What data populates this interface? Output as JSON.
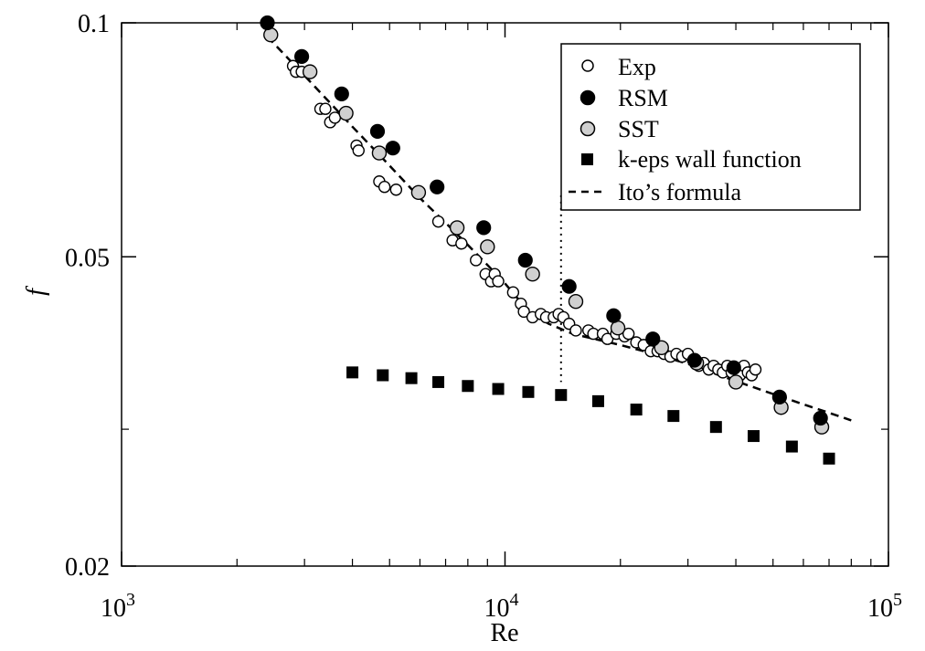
{
  "chart_data": {
    "type": "scatter",
    "title": "",
    "xlabel": "Re",
    "ylabel": "f",
    "xscale": "log",
    "yscale": "log",
    "xlim": [
      1000,
      100000
    ],
    "ylim": [
      0.02,
      0.1
    ],
    "x_ticks": [
      {
        "value": 1000,
        "base": "10",
        "exp": "3"
      },
      {
        "value": 10000,
        "base": "10",
        "exp": "4"
      },
      {
        "value": 100000,
        "base": "10",
        "exp": "5"
      }
    ],
    "y_ticks": [
      {
        "value": 0.1,
        "label": "0.1"
      },
      {
        "value": 0.05,
        "label": "0.05"
      },
      {
        "value": 0.02,
        "label": "0.02"
      }
    ],
    "y_minor_ticks": [
      0.03
    ],
    "x_minor_ticks": [
      2000,
      3000,
      4000,
      5000,
      6000,
      7000,
      8000,
      9000,
      20000,
      30000,
      40000,
      50000,
      60000,
      70000,
      80000,
      90000
    ],
    "grid": false,
    "legend_position": "top-right",
    "annotations": [
      {
        "type": "vertical-dotted-line",
        "x": 14000,
        "y_range": [
          0.0345,
          0.06
        ]
      }
    ],
    "series": [
      {
        "name": "Exp",
        "marker": "open-circle",
        "color": "#000000",
        "fill": "#ffffff",
        "points": [
          [
            2800,
            0.088
          ],
          [
            2850,
            0.0865
          ],
          [
            2950,
            0.0865
          ],
          [
            3300,
            0.0775
          ],
          [
            3400,
            0.0775
          ],
          [
            3500,
            0.0745
          ],
          [
            3600,
            0.0755
          ],
          [
            4100,
            0.0695
          ],
          [
            4150,
            0.0685
          ],
          [
            4700,
            0.0625
          ],
          [
            4850,
            0.0615
          ],
          [
            5200,
            0.061
          ],
          [
            6700,
            0.0555
          ],
          [
            7300,
            0.0525
          ],
          [
            7700,
            0.052
          ],
          [
            8400,
            0.0495
          ],
          [
            8900,
            0.0475
          ],
          [
            9200,
            0.0465
          ],
          [
            9400,
            0.0475
          ],
          [
            9600,
            0.0465
          ],
          [
            10500,
            0.045
          ],
          [
            11000,
            0.0435
          ],
          [
            11200,
            0.0425
          ],
          [
            11800,
            0.0418
          ],
          [
            12400,
            0.0422
          ],
          [
            12800,
            0.0418
          ],
          [
            13400,
            0.0418
          ],
          [
            13800,
            0.0422
          ],
          [
            14200,
            0.0418
          ],
          [
            14700,
            0.041
          ],
          [
            15300,
            0.0402
          ],
          [
            16500,
            0.0402
          ],
          [
            17000,
            0.0398
          ],
          [
            18000,
            0.0398
          ],
          [
            18500,
            0.0392
          ],
          [
            19500,
            0.0398
          ],
          [
            20500,
            0.0395
          ],
          [
            21000,
            0.0398
          ],
          [
            22000,
            0.0388
          ],
          [
            23000,
            0.0385
          ],
          [
            24000,
            0.0378
          ],
          [
            25000,
            0.0378
          ],
          [
            26000,
            0.0375
          ],
          [
            27000,
            0.0372
          ],
          [
            28000,
            0.0375
          ],
          [
            29000,
            0.0372
          ],
          [
            30000,
            0.0375
          ],
          [
            31000,
            0.0368
          ],
          [
            32000,
            0.0362
          ],
          [
            33000,
            0.0365
          ],
          [
            34000,
            0.0358
          ],
          [
            35000,
            0.0362
          ],
          [
            36000,
            0.0358
          ],
          [
            37000,
            0.0355
          ],
          [
            38000,
            0.0362
          ],
          [
            39000,
            0.0355
          ],
          [
            40000,
            0.0358
          ],
          [
            41000,
            0.0352
          ],
          [
            42000,
            0.0362
          ],
          [
            43000,
            0.0355
          ],
          [
            44000,
            0.0352
          ],
          [
            45000,
            0.0358
          ]
        ]
      },
      {
        "name": "RSM",
        "marker": "filled-circle",
        "color": "#000000",
        "fill": "#000000",
        "points": [
          [
            2400,
            0.1
          ],
          [
            2950,
            0.0905
          ],
          [
            3750,
            0.081
          ],
          [
            4650,
            0.0725
          ],
          [
            5100,
            0.069
          ],
          [
            6650,
            0.0615
          ],
          [
            8800,
            0.0545
          ],
          [
            11300,
            0.0495
          ],
          [
            14700,
            0.0458
          ],
          [
            19200,
            0.042
          ],
          [
            24300,
            0.0392
          ],
          [
            31200,
            0.0368
          ],
          [
            39500,
            0.036
          ],
          [
            52000,
            0.033
          ],
          [
            66500,
            0.031
          ]
        ]
      },
      {
        "name": "SST",
        "marker": "gray-circle",
        "color": "#000000",
        "fill": "#d0d0d0",
        "points": [
          [
            2450,
            0.0965
          ],
          [
            3100,
            0.0865
          ],
          [
            3850,
            0.0765
          ],
          [
            4700,
            0.068
          ],
          [
            5950,
            0.0605
          ],
          [
            7500,
            0.0545
          ],
          [
            9000,
            0.0515
          ],
          [
            11800,
            0.0475
          ],
          [
            15300,
            0.0438
          ],
          [
            19700,
            0.0405
          ],
          [
            25600,
            0.0382
          ],
          [
            31600,
            0.0365
          ],
          [
            40000,
            0.0345
          ],
          [
            52500,
            0.032
          ],
          [
            67000,
            0.0302
          ]
        ]
      },
      {
        "name": "k-eps wall function",
        "marker": "filled-square",
        "color": "#000000",
        "fill": "#000000",
        "points": [
          [
            4000,
            0.0355
          ],
          [
            4800,
            0.0352
          ],
          [
            5700,
            0.0349
          ],
          [
            6700,
            0.0345
          ],
          [
            8000,
            0.0341
          ],
          [
            9600,
            0.0338
          ],
          [
            11500,
            0.0335
          ],
          [
            14000,
            0.0332
          ],
          [
            17500,
            0.0326
          ],
          [
            22000,
            0.0318
          ],
          [
            27500,
            0.0312
          ],
          [
            35500,
            0.0302
          ],
          [
            44500,
            0.0294
          ],
          [
            56000,
            0.0285
          ],
          [
            70000,
            0.0275
          ]
        ]
      },
      {
        "name": "Ito’s formula",
        "marker": "dashed-line",
        "color": "#000000",
        "points": [
          [
            2400,
            0.096
          ],
          [
            3000,
            0.0855
          ],
          [
            4000,
            0.0735
          ],
          [
            5000,
            0.0655
          ],
          [
            6000,
            0.0595
          ],
          [
            7000,
            0.0553
          ],
          [
            8000,
            0.0518
          ],
          [
            9000,
            0.0488
          ],
          [
            10000,
            0.0462
          ],
          [
            11000,
            0.0437
          ],
          [
            12000,
            0.042
          ],
          [
            13000,
            0.041
          ],
          [
            15000,
            0.0398
          ],
          [
            20000,
            0.0385
          ],
          [
            25000,
            0.0374
          ],
          [
            30000,
            0.0364
          ],
          [
            40000,
            0.0346
          ],
          [
            50000,
            0.0333
          ],
          [
            60000,
            0.0323
          ],
          [
            70000,
            0.0315
          ],
          [
            80000,
            0.0308
          ]
        ]
      }
    ]
  }
}
